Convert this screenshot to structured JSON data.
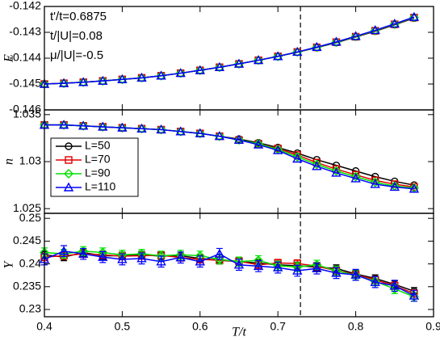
{
  "chart_data": [
    {
      "type": "line",
      "ylabel": "E",
      "annotations": [
        "t'/t=0.6875",
        "t/|U|=0.08",
        "μ/|U|=-0.5"
      ],
      "x": [
        0.4,
        0.425,
        0.45,
        0.475,
        0.5,
        0.525,
        0.55,
        0.575,
        0.6,
        0.625,
        0.65,
        0.675,
        0.7,
        0.725,
        0.75,
        0.775,
        0.8,
        0.825,
        0.85,
        0.875
      ],
      "ylim": [
        -0.146,
        -0.142
      ],
      "yticks": [
        -0.146,
        -0.145,
        -0.144,
        -0.143,
        -0.142
      ],
      "vline": 0.729,
      "series": [
        {
          "name": "L=50",
          "color": "#000000",
          "marker": "circle",
          "values": [
            -0.145,
            -0.14497,
            -0.14493,
            -0.14488,
            -0.14482,
            -0.14476,
            -0.14468,
            -0.14458,
            -0.14447,
            -0.14435,
            -0.14422,
            -0.14408,
            -0.14393,
            -0.14377,
            -0.14359,
            -0.1434,
            -0.14318,
            -0.14296,
            -0.14271,
            -0.14245
          ]
        },
        {
          "name": "L=70",
          "color": "#e00000",
          "marker": "square",
          "values": [
            -0.145,
            -0.14497,
            -0.14493,
            -0.14488,
            -0.14482,
            -0.14476,
            -0.14468,
            -0.14458,
            -0.14447,
            -0.14435,
            -0.14422,
            -0.14408,
            -0.14393,
            -0.14376,
            -0.14358,
            -0.14338,
            -0.14317,
            -0.14294,
            -0.14269,
            -0.14243
          ]
        },
        {
          "name": "L=90",
          "color": "#00e000",
          "marker": "diamond",
          "values": [
            -0.145,
            -0.14497,
            -0.14493,
            -0.14488,
            -0.14482,
            -0.14476,
            -0.14468,
            -0.14458,
            -0.14447,
            -0.14435,
            -0.14422,
            -0.14408,
            -0.14393,
            -0.14376,
            -0.14358,
            -0.14338,
            -0.14316,
            -0.14293,
            -0.14268,
            -0.14242
          ]
        },
        {
          "name": "L=110",
          "color": "#0000ff",
          "marker": "triangle",
          "values": [
            -0.145,
            -0.14497,
            -0.14493,
            -0.14488,
            -0.14482,
            -0.14476,
            -0.14468,
            -0.14458,
            -0.14447,
            -0.14435,
            -0.14422,
            -0.14408,
            -0.14393,
            -0.14376,
            -0.14357,
            -0.14337,
            -0.14315,
            -0.14292,
            -0.14267,
            -0.14241
          ]
        }
      ]
    },
    {
      "type": "line",
      "ylabel": "n",
      "legend": "left",
      "x": [
        0.4,
        0.425,
        0.45,
        0.475,
        0.5,
        0.525,
        0.55,
        0.575,
        0.6,
        0.625,
        0.65,
        0.675,
        0.7,
        0.725,
        0.75,
        0.775,
        0.8,
        0.825,
        0.85,
        0.875
      ],
      "ylim": [
        1.0245,
        1.0355
      ],
      "yticks": [
        1.025,
        1.03,
        1.035
      ],
      "vline": 0.729,
      "series": [
        {
          "name": "L=50",
          "color": "#000000",
          "marker": "circle",
          "values": [
            1.0339,
            1.0339,
            1.0338,
            1.0337,
            1.0336,
            1.0335,
            1.0334,
            1.0332,
            1.033,
            1.0327,
            1.0324,
            1.032,
            1.0315,
            1.0309,
            1.0302,
            1.0296,
            1.029,
            1.0284,
            1.0279,
            1.0275
          ]
        },
        {
          "name": "L=70",
          "color": "#e00000",
          "marker": "square",
          "values": [
            1.0339,
            1.0339,
            1.0338,
            1.0337,
            1.0336,
            1.0335,
            1.0334,
            1.0332,
            1.033,
            1.0327,
            1.0323,
            1.0319,
            1.0314,
            1.0307,
            1.0299,
            1.0292,
            1.0286,
            1.028,
            1.0276,
            1.0273
          ]
        },
        {
          "name": "L=90",
          "color": "#00e000",
          "marker": "diamond",
          "values": [
            1.0339,
            1.0339,
            1.0338,
            1.0337,
            1.0336,
            1.0335,
            1.0334,
            1.0332,
            1.033,
            1.0327,
            1.0323,
            1.0319,
            1.0313,
            1.0305,
            1.0297,
            1.029,
            1.0284,
            1.0278,
            1.0274,
            1.0272
          ]
        },
        {
          "name": "L=110",
          "color": "#0000ff",
          "marker": "triangle",
          "values": [
            1.0339,
            1.0339,
            1.0338,
            1.0337,
            1.0336,
            1.0335,
            1.0334,
            1.0332,
            1.033,
            1.0327,
            1.0323,
            1.0318,
            1.0312,
            1.0303,
            1.0295,
            1.0288,
            1.0282,
            1.0276,
            1.0273,
            1.0271
          ]
        }
      ]
    },
    {
      "type": "errorline",
      "ylabel": "Y",
      "xlabel": "T/t",
      "x": [
        0.4,
        0.425,
        0.45,
        0.475,
        0.5,
        0.525,
        0.55,
        0.575,
        0.6,
        0.625,
        0.65,
        0.675,
        0.7,
        0.725,
        0.75,
        0.775,
        0.8,
        0.825,
        0.85,
        0.875
      ],
      "xlim": [
        0.4,
        0.9
      ],
      "xticks": [
        0.4,
        0.5,
        0.6,
        0.7,
        0.8,
        0.9
      ],
      "ylim": [
        0.2284,
        0.2511
      ],
      "yticks": [
        0.23,
        0.235,
        0.24,
        0.245,
        0.25
      ],
      "vline": 0.729,
      "series": [
        {
          "name": "L=50",
          "color": "#000000",
          "marker": "circle",
          "values": [
            0.242,
            0.2415,
            0.2425,
            0.2418,
            0.2418,
            0.242,
            0.2417,
            0.2418,
            0.2412,
            0.2408,
            0.2405,
            0.2402,
            0.2398,
            0.2396,
            0.2393,
            0.239,
            0.2378,
            0.2368,
            0.2355,
            0.234
          ],
          "errors": [
            0.0008,
            0.0008,
            0.0008,
            0.0008,
            0.0008,
            0.0008,
            0.0008,
            0.0008,
            0.0008,
            0.0008,
            0.0008,
            0.0008,
            0.0008,
            0.0008,
            0.0008,
            0.0008,
            0.0008,
            0.0008,
            0.0008,
            0.0008
          ]
        },
        {
          "name": "L=70",
          "color": "#e00000",
          "marker": "square",
          "values": [
            0.2415,
            0.2418,
            0.2422,
            0.242,
            0.2417,
            0.2418,
            0.2419,
            0.2414,
            0.241,
            0.2408,
            0.2406,
            0.2398,
            0.2402,
            0.2401,
            0.2395,
            0.2385,
            0.2377,
            0.2365,
            0.2352,
            0.2335
          ],
          "errors": [
            0.0008,
            0.0008,
            0.0008,
            0.0008,
            0.0008,
            0.0008,
            0.0008,
            0.0008,
            0.0008,
            0.0008,
            0.0008,
            0.0008,
            0.0008,
            0.0008,
            0.0008,
            0.0008,
            0.0008,
            0.0008,
            0.0008,
            0.0008
          ]
        },
        {
          "name": "L=90",
          "color": "#00e000",
          "marker": "diamond",
          "values": [
            0.2425,
            0.2422,
            0.2428,
            0.2425,
            0.242,
            0.2422,
            0.2418,
            0.242,
            0.2418,
            0.241,
            0.2405,
            0.2408,
            0.2396,
            0.2393,
            0.2398,
            0.2385,
            0.2375,
            0.2362,
            0.2345,
            0.2328
          ],
          "errors": [
            0.001,
            0.001,
            0.001,
            0.001,
            0.001,
            0.001,
            0.001,
            0.001,
            0.001,
            0.001,
            0.001,
            0.001,
            0.001,
            0.001,
            0.001,
            0.001,
            0.001,
            0.001,
            0.001,
            0.001
          ]
        },
        {
          "name": "L=110",
          "color": "#0000ff",
          "marker": "triangle",
          "values": [
            0.241,
            0.2428,
            0.2422,
            0.2415,
            0.241,
            0.2412,
            0.2405,
            0.2414,
            0.2405,
            0.2422,
            0.2398,
            0.2395,
            0.2392,
            0.2385,
            0.239,
            0.238,
            0.2376,
            0.236,
            0.2352,
            0.233
          ],
          "errors": [
            0.0012,
            0.0012,
            0.0012,
            0.0012,
            0.0012,
            0.0012,
            0.0012,
            0.0012,
            0.0012,
            0.0012,
            0.0012,
            0.0012,
            0.0012,
            0.0012,
            0.0012,
            0.0012,
            0.0012,
            0.0012,
            0.0012,
            0.0012
          ]
        }
      ]
    }
  ]
}
